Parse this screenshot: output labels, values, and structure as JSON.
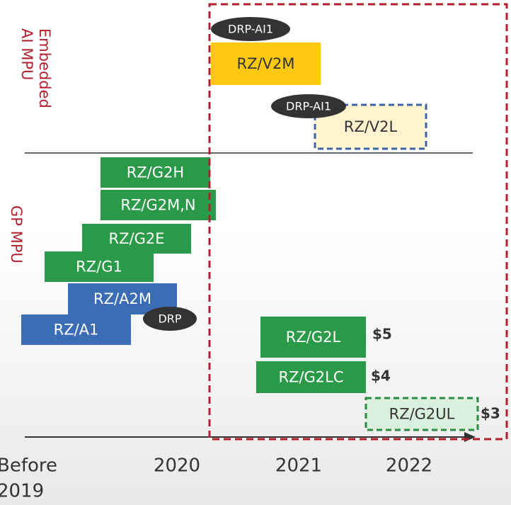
{
  "sections": [
    {
      "lines": [
        "Embedded",
        "AI MPU"
      ]
    },
    {
      "lines": [
        "GP MPU"
      ]
    }
  ],
  "products": [
    "RZ/V2M",
    "RZ/V2L",
    "RZ/G2H",
    "RZ/G2M,N",
    "RZ/G2E",
    "RZ/G1",
    "RZ/A2M",
    "RZ/A1",
    "RZ/G2L",
    "RZ/G2LC",
    "RZ/G2UL"
  ],
  "badges": [
    "DRP-AI1",
    "DRP-AI1",
    "DRP"
  ],
  "prices": [
    "$5",
    "$4",
    "$3"
  ],
  "timeline": [
    [
      "Before",
      "2019"
    ],
    [
      "2020"
    ],
    [
      "2021"
    ],
    [
      "2022"
    ]
  ]
}
